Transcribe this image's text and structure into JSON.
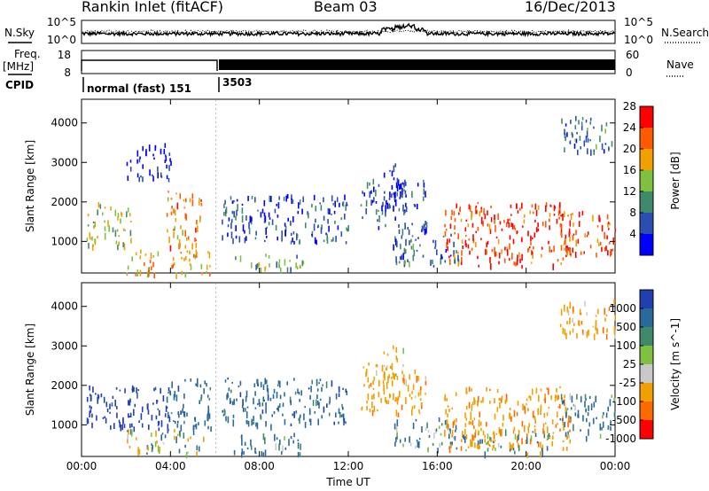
{
  "header": {
    "station": "Rankin Inlet (fitACF)",
    "beam": "Beam 03",
    "date": "16/Dec/2013"
  },
  "top_panels": {
    "nsky_label": "N.Sky",
    "nsky_ticks": [
      "10^5",
      "10^0"
    ],
    "nsearch_label": "N.Search",
    "nsearch_ticks": [
      "10^5",
      "10^0"
    ],
    "freq_label": "Freq.",
    "freq_unit": "[MHz]",
    "freq_ticks": [
      "18",
      "8"
    ],
    "nave_label": "Nave",
    "nave_ticks": [
      "60",
      "0"
    ],
    "cpid_label": "CPID",
    "cpid_segments": [
      {
        "label": "normal (fast) 151",
        "start_hour": 0.0,
        "end_hour": 6.1
      },
      {
        "label": "3503",
        "start_hour": 6.1,
        "end_hour": 24.0
      }
    ]
  },
  "chart_data": [
    {
      "type": "heatmap",
      "title": "",
      "xlabel": "",
      "ylabel": "Slant Range [km]",
      "x_ticks": [
        "00:00",
        "04:00",
        "08:00",
        "12:00",
        "16:00",
        "20:00",
        "00:00"
      ],
      "x_tick_hours": [
        0,
        4,
        8,
        12,
        16,
        20,
        24
      ],
      "xlim_hours": [
        0,
        24
      ],
      "y_ticks": [
        1000,
        2000,
        3000,
        4000
      ],
      "ylim": [
        200,
        4600
      ],
      "colorbar": {
        "label": "Power [dB]",
        "ticks": [
          "4",
          "8",
          "12",
          "16",
          "20",
          "24",
          "28"
        ],
        "colors": [
          "#0000ff",
          "#2a4fb0",
          "#3f8a6a",
          "#7fc040",
          "#f0a000",
          "#ff5a00",
          "#ff0000"
        ]
      },
      "regions": [
        {
          "h0": 0.2,
          "h1": 2.2,
          "r0": 900,
          "r1": 2000,
          "value": 18
        },
        {
          "h0": 2.0,
          "h1": 5.8,
          "r0": 200,
          "r1": 800,
          "value": 22
        },
        {
          "h0": 3.8,
          "h1": 5.4,
          "r0": 900,
          "r1": 2300,
          "value": 24
        },
        {
          "h0": 6.3,
          "h1": 12.0,
          "r0": 1000,
          "r1": 2200,
          "value": 10
        },
        {
          "h0": 6.8,
          "h1": 10.0,
          "r0": 300,
          "r1": 700,
          "value": 16
        },
        {
          "h0": 12.5,
          "h1": 15.5,
          "r0": 1300,
          "r1": 2600,
          "value": 9
        },
        {
          "h0": 13.5,
          "h1": 14.5,
          "r0": 2200,
          "r1": 3000,
          "value": 8
        },
        {
          "h0": 14.0,
          "h1": 17.0,
          "r0": 400,
          "r1": 1200,
          "value": 12
        },
        {
          "h0": 16.3,
          "h1": 22.0,
          "r0": 400,
          "r1": 2000,
          "value": 28
        },
        {
          "h0": 21.5,
          "h1": 24.0,
          "r0": 700,
          "r1": 1800,
          "value": 26
        },
        {
          "h0": 21.5,
          "h1": 24.0,
          "r0": 3300,
          "r1": 4200,
          "value": 12
        },
        {
          "h0": 2.0,
          "h1": 4.0,
          "r0": 2600,
          "r1": 3500,
          "value": 6
        }
      ]
    },
    {
      "type": "heatmap",
      "title": "",
      "xlabel": "Time UT",
      "ylabel": "Slant Range [km]",
      "x_ticks": [
        "00:00",
        "04:00",
        "08:00",
        "12:00",
        "16:00",
        "20:00",
        "00:00"
      ],
      "x_tick_hours": [
        0,
        4,
        8,
        12,
        16,
        20,
        24
      ],
      "xlim_hours": [
        0,
        24
      ],
      "y_ticks": [
        1000,
        2000,
        3000,
        4000
      ],
      "ylim": [
        200,
        4600
      ],
      "colorbar": {
        "label": "Velocity [m s^-1]",
        "ticks": [
          "1000",
          "500",
          "100",
          "25",
          "-25",
          "-100",
          "-500",
          "-1000"
        ],
        "colors": [
          "#2040b0",
          "#2a6a9a",
          "#3f8a6a",
          "#7fc040",
          "#c8c8c8",
          "#f0a000",
          "#ff6a00",
          "#ff0000"
        ]
      },
      "regions": [
        {
          "h0": 0.2,
          "h1": 4.0,
          "r0": 900,
          "r1": 2000,
          "value": 700
        },
        {
          "h0": 2.0,
          "h1": 5.5,
          "r0": 300,
          "r1": 900,
          "value": 0
        },
        {
          "h0": 3.8,
          "h1": 5.8,
          "r0": 900,
          "r1": 2200,
          "value": 300
        },
        {
          "h0": 6.3,
          "h1": 12.0,
          "r0": 1000,
          "r1": 2200,
          "value": 300
        },
        {
          "h0": 6.8,
          "h1": 10.0,
          "r0": 300,
          "r1": 800,
          "value": 200
        },
        {
          "h0": 12.5,
          "h1": 15.5,
          "r0": 1300,
          "r1": 2600,
          "value": -300
        },
        {
          "h0": 13.5,
          "h1": 14.5,
          "r0": 2200,
          "r1": 3100,
          "value": -200
        },
        {
          "h0": 14.0,
          "h1": 17.0,
          "r0": 400,
          "r1": 1200,
          "value": 150
        },
        {
          "h0": 16.3,
          "h1": 22.0,
          "r0": 400,
          "r1": 2000,
          "value": -400
        },
        {
          "h0": 17.0,
          "h1": 21.0,
          "r0": 300,
          "r1": 900,
          "value": 0
        },
        {
          "h0": 21.5,
          "h1": 24.0,
          "r0": 700,
          "r1": 1800,
          "value": 200
        },
        {
          "h0": 21.5,
          "h1": 24.0,
          "r0": 3300,
          "r1": 4200,
          "value": -300
        }
      ]
    }
  ]
}
